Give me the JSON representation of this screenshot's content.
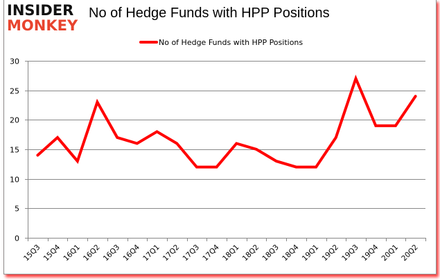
{
  "logo": {
    "line1": "INSIDER",
    "line2": "MONKEY"
  },
  "chart_data": {
    "type": "line",
    "title": "No of Hedge Funds with HPP Positions",
    "xlabel": "",
    "ylabel": "",
    "categories": [
      "15Q3",
      "15Q4",
      "16Q1",
      "16Q2",
      "16Q3",
      "16Q4",
      "17Q1",
      "17Q2",
      "17Q3",
      "17Q4",
      "18Q1",
      "18Q2",
      "18Q3",
      "18Q4",
      "19Q1",
      "19Q2",
      "19Q3",
      "19Q4",
      "20Q1",
      "20Q2"
    ],
    "series": [
      {
        "name": "No of Hedge Funds with HPP Positions",
        "color": "#ff0000",
        "values": [
          14,
          17,
          13,
          23,
          17,
          16,
          18,
          16,
          12,
          12,
          16,
          15,
          13,
          12,
          12,
          17,
          27,
          19,
          19,
          24
        ]
      }
    ],
    "ylim": [
      0,
      30
    ],
    "yticks": [
      0,
      5,
      10,
      15,
      20,
      25,
      30
    ],
    "grid": true,
    "legend_position": "top"
  },
  "colors": {
    "line": "#ff0000",
    "grid": "#888888",
    "frame_shadow": "#ff0000",
    "logo_red": "#e8442e"
  }
}
